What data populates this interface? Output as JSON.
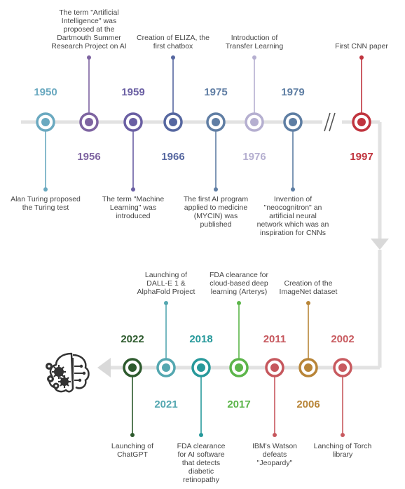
{
  "colors": {
    "track": "#e2e2e2",
    "ai_icon": "#333333"
  },
  "top_events": [
    {
      "year": "1950",
      "label": "Alan Turing proposed\nthe Turing test",
      "color": "#6aa9c0"
    },
    {
      "year": "1956",
      "label": "The term \"Artificial\nIntelligence\" was\nproposed at the\nDartmouth Summer\nResearch Project on AI",
      "color": "#7e64a1"
    },
    {
      "year": "1959",
      "label": "The term \"Machine\nLearning\" was\nintroduced",
      "color": "#6a5fa3"
    },
    {
      "year": "1966",
      "label": "Creation of ELIZA, the\nfirst chatbox",
      "color": "#5667a0"
    },
    {
      "year": "1975",
      "label": "The first AI program\napplied to medicine\n(MYCIN) was\npublished",
      "color": "#607ea4"
    },
    {
      "year": "1976",
      "label": "Introduction of\nTransfer Learning",
      "color": "#b5afd0"
    },
    {
      "year": "1979",
      "label": "Invention of\n\"neocognitron\" an\nartificial neural\nnetwork which was an\ninspiration for CNNs",
      "color": "#5e7ea3"
    },
    {
      "year": "1997",
      "label": "First CNN paper",
      "color": "#c0343e"
    }
  ],
  "bottom_events": [
    {
      "year": "2022",
      "label": "Launching of\nChatGPT",
      "color": "#2d5a2d"
    },
    {
      "year": "2021",
      "label": "Launching of\nDALL-E 1 &\nAlphaFold Project",
      "color": "#54a7b0"
    },
    {
      "year": "2018",
      "label": "FDA clearance\nfor AI software\nthat detects\ndiabetic\nretinopathy",
      "color": "#27999b"
    },
    {
      "year": "2017",
      "label": "FDA clearance for\ncloud-based deep\nlearning (Arterys)",
      "color": "#5cb54a"
    },
    {
      "year": "2011",
      "label": "IBM's Watson\ndefeats\n\"Jeopardy\"",
      "color": "#c6575d"
    },
    {
      "year": "2006",
      "label": "Creation of the\nImageNet dataset",
      "color": "#b88538"
    },
    {
      "year": "2002",
      "label": "Lanching of Torch\nlibrary",
      "color": "#c85a5f"
    }
  ]
}
